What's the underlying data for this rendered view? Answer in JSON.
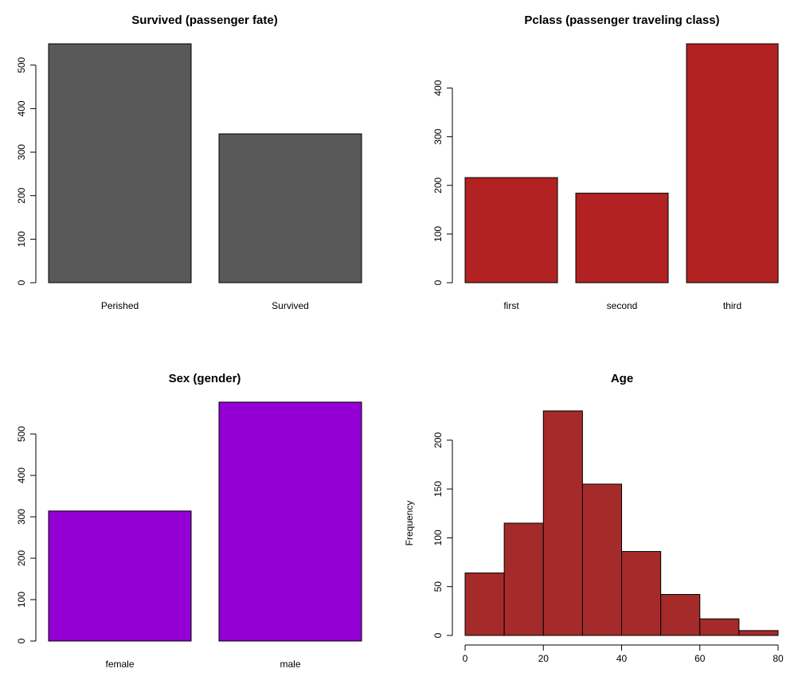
{
  "chart_data": [
    {
      "type": "bar",
      "title": "Survived (passenger fate)",
      "xlabel": "",
      "ylabel": "",
      "categories": [
        "Perished",
        "Survived"
      ],
      "values": [
        549,
        342
      ],
      "ylim": [
        0,
        549
      ],
      "yticks": [
        0,
        100,
        200,
        300,
        400,
        500
      ],
      "color": "#595959",
      "grid": false
    },
    {
      "type": "bar",
      "title": "Pclass (passenger traveling class)",
      "xlabel": "",
      "ylabel": "",
      "categories": [
        "first",
        "second",
        "third"
      ],
      "values": [
        216,
        184,
        491
      ],
      "ylim": [
        0,
        491
      ],
      "yticks": [
        0,
        100,
        200,
        300,
        400
      ],
      "color": "#b22222",
      "grid": false
    },
    {
      "type": "bar",
      "title": "Sex (gender)",
      "xlabel": "",
      "ylabel": "",
      "categories": [
        "female",
        "male"
      ],
      "values": [
        314,
        577
      ],
      "ylim": [
        0,
        577
      ],
      "yticks": [
        0,
        100,
        200,
        300,
        400,
        500
      ],
      "color": "#9400d3",
      "grid": false
    },
    {
      "type": "histogram",
      "title": "Age",
      "xlabel": "",
      "ylabel": "Frequency",
      "bins": [
        {
          "from": 0,
          "to": 10,
          "count": 64
        },
        {
          "from": 10,
          "to": 20,
          "count": 115
        },
        {
          "from": 20,
          "to": 30,
          "count": 230
        },
        {
          "from": 30,
          "to": 40,
          "count": 155
        },
        {
          "from": 40,
          "to": 50,
          "count": 86
        },
        {
          "from": 50,
          "to": 60,
          "count": 42
        },
        {
          "from": 60,
          "to": 70,
          "count": 17
        },
        {
          "from": 70,
          "to": 80,
          "count": 5
        }
      ],
      "xlim": [
        0,
        80
      ],
      "ylim": [
        0,
        230
      ],
      "xticks": [
        0,
        20,
        40,
        60,
        80
      ],
      "yticks": [
        0,
        50,
        100,
        150,
        200
      ],
      "color": "#a52a2a",
      "grid": false
    }
  ]
}
